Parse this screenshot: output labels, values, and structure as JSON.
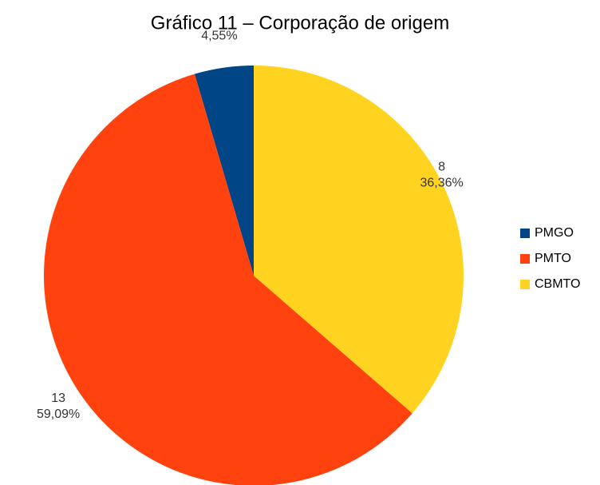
{
  "chart_data": {
    "type": "pie",
    "title": "Gráfico 11 – Corporação de origem",
    "categories": [
      "PMGO",
      "PMTO",
      "CBMTO"
    ],
    "values": [
      1,
      13,
      8
    ],
    "value_labels": [
      null,
      "13",
      "8"
    ],
    "percent_labels": [
      "4,55%",
      "59,09%",
      "36,36%"
    ],
    "colors": [
      "#004586",
      "#ff420e",
      "#ffd320"
    ],
    "legend": "right"
  }
}
